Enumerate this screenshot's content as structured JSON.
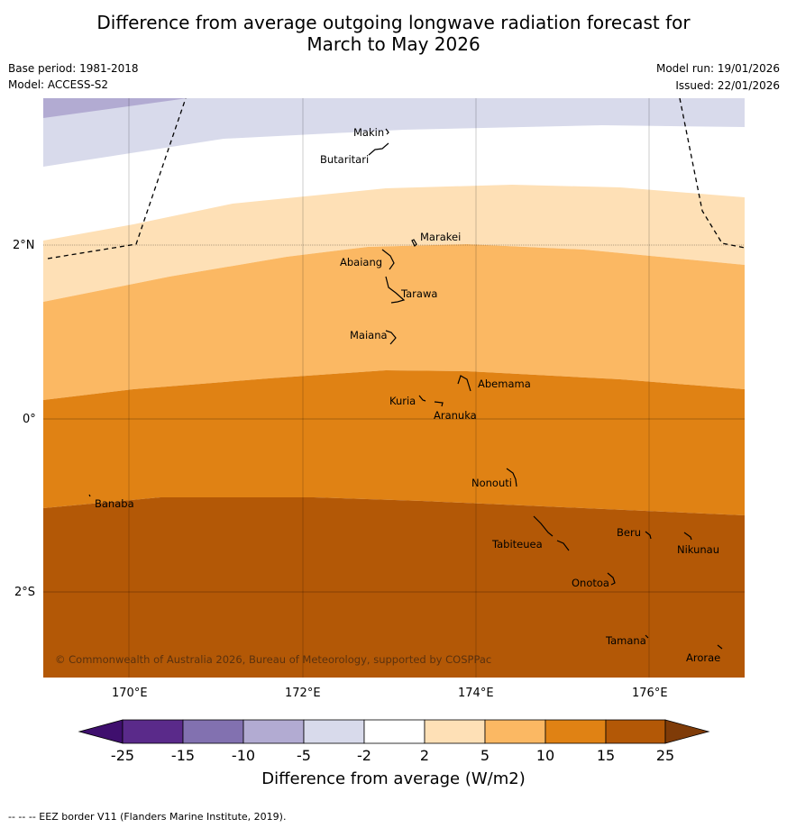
{
  "title_line1": "Difference from average outgoing longwave radiation forecast for",
  "title_line2": "March to May 2026",
  "base_period": "Base period: 1981-2018",
  "model": "Model: ACCESS-S2",
  "model_run": "Model run: 19/01/2026",
  "issued": "Issued: 22/01/2026",
  "lat_ticks": [
    "2°N",
    "0°",
    "2°S"
  ],
  "lon_ticks": [
    "170°E",
    "172°E",
    "174°E",
    "176°E"
  ],
  "islands": [
    "Makin",
    "Butaritari",
    "Marakei",
    "Abaiang",
    "Tarawa",
    "Maiana",
    "Abemama",
    "Kuria",
    "Aranuka",
    "Nonouti",
    "Banaba",
    "Beru",
    "Nikunau",
    "Tabiteuea",
    "Onotoa",
    "Tamana",
    "Arorae"
  ],
  "copyright": "© Commonwealth of Australia 2026, Bureau of Meteorology, supported by COSPPac",
  "colorbar": {
    "title": "Difference from average (W/m2)",
    "ticks": [
      "-25",
      "-15",
      "-10",
      "-5",
      "-2",
      "2",
      "5",
      "10",
      "15",
      "25"
    ],
    "colors": [
      "#3f0f6e",
      "#5a2a8a",
      "#8271b0",
      "#b2abd2",
      "#d8daeb",
      "#ffffff",
      "#fee0b6",
      "#fbb863",
      "#e08214",
      "#b35806",
      "#7f3b08"
    ]
  },
  "footnote": "--  --  -- EEZ border V11 (Flanders Marine Institute, 2019)."
}
